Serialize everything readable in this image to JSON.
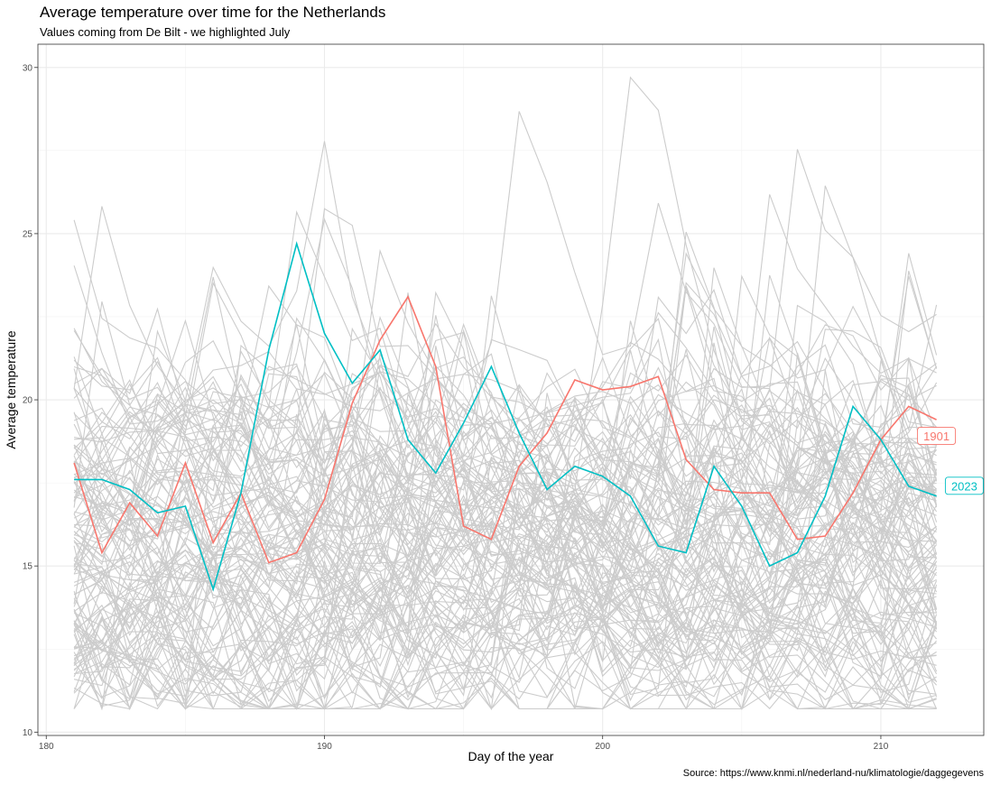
{
  "title": "Average temperature over time for the Netherlands",
  "subtitle": "Values coming from De Bilt - we highlighted July",
  "caption": "Source: https://www.knmi.nl/nederland-nu/klimatologie/daggegevens",
  "chart_data": {
    "type": "line",
    "title": "Average temperature over time for the Netherlands",
    "subtitle": "Values coming from De Bilt - we highlighted July",
    "xlabel": "Day of the year",
    "ylabel": "Average temperature",
    "xlim": [
      179.7,
      213.7
    ],
    "ylim": [
      9.9,
      30.7
    ],
    "x_ticks": [
      180,
      190,
      200,
      210
    ],
    "y_ticks": [
      10,
      15,
      20,
      25,
      30
    ],
    "x_tick_labels": [
      "180",
      "190",
      "200",
      "210"
    ],
    "y_tick_labels": [
      "10",
      "15",
      "20",
      "25",
      "30"
    ],
    "grid": true,
    "background_series_color": "#cccccc",
    "background_series_count": 123,
    "background_band": [
      11.5,
      19.5
    ],
    "x": [
      181,
      182,
      183,
      184,
      185,
      186,
      187,
      188,
      189,
      190,
      191,
      192,
      193,
      194,
      195,
      196,
      197,
      198,
      199,
      200,
      201,
      202,
      203,
      204,
      205,
      206,
      207,
      208,
      209,
      210,
      211,
      212
    ],
    "highlighted_series": [
      {
        "name": "1901",
        "color": "#f8766d",
        "values": [
          18.1,
          15.4,
          16.9,
          15.9,
          18.1,
          15.7,
          17.2,
          15.1,
          15.4,
          17.0,
          19.9,
          21.8,
          23.1,
          21.0,
          16.2,
          15.8,
          18.0,
          19.0,
          20.6,
          20.3,
          20.4,
          20.7,
          18.2,
          17.3,
          17.2,
          17.2,
          15.8,
          15.9,
          17.2,
          18.8,
          19.8,
          19.4
        ]
      },
      {
        "name": "2023",
        "color": "#00bfc4",
        "values": [
          17.6,
          17.6,
          17.3,
          16.6,
          16.8,
          14.3,
          17.2,
          21.5,
          24.7,
          22.0,
          20.5,
          21.5,
          18.8,
          17.8,
          19.3,
          21.0,
          19.0,
          17.3,
          18.0,
          17.7,
          17.1,
          15.6,
          15.4,
          18.0,
          16.8,
          15.0,
          15.4,
          17.1,
          19.8,
          18.8,
          17.4,
          17.1
        ]
      }
    ],
    "labels": [
      {
        "text": "1901",
        "x": 212,
        "y": 18.9,
        "color": "#f8766d"
      },
      {
        "text": "2023",
        "x": 213,
        "y": 17.4,
        "color": "#00bfc4"
      }
    ]
  }
}
